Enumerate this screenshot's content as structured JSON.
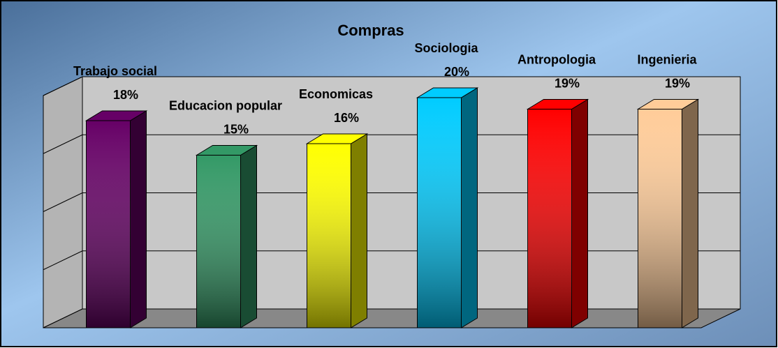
{
  "chart_data": {
    "type": "bar3d",
    "title": "Compras",
    "categories": [
      "Trabajo social",
      "Educacion popular",
      "Economicas",
      "Sociologia",
      "Antropologia",
      "Ingenieria"
    ],
    "values": [
      18,
      15,
      16,
      20,
      19,
      19
    ],
    "value_labels": [
      "18%",
      "15%",
      "16%",
      "20%",
      "19%",
      "19%"
    ],
    "colors": [
      "#660066",
      "#339966",
      "#ffff00",
      "#00ccff",
      "#ff0000",
      "#ffcc99"
    ],
    "ylim": [
      0,
      20
    ],
    "yticks": [
      0,
      5,
      10,
      15,
      20
    ],
    "grid": true
  }
}
